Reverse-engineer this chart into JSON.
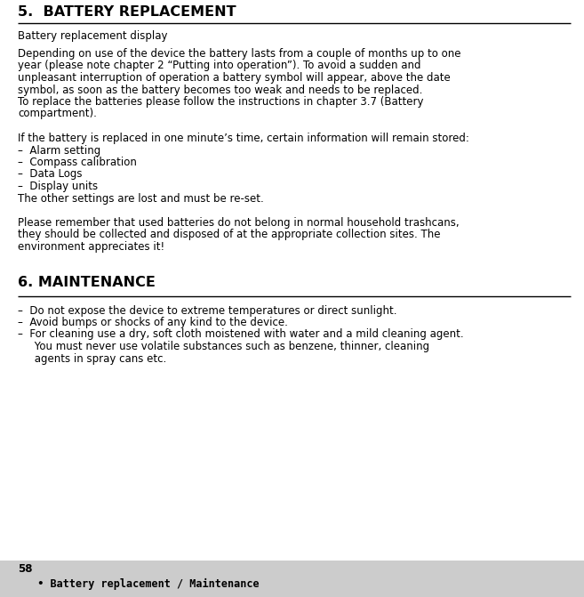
{
  "page_bg": "#ffffff",
  "footer_bg": "#cccccc",
  "title1": "5.  BATTERY REPLACEMENT",
  "title2": "6. MAINTENANCE",
  "subtitle1": "Battery replacement display",
  "body1_lines": [
    "Depending on use of the device the battery lasts from a couple of months up to one",
    "year (please note chapter 2 “Putting into operation”). To avoid a sudden and",
    "unpleasant interruption of operation a battery symbol will appear, above the date",
    "symbol, as soon as the battery becomes too weak and needs to be replaced.",
    "To replace the batteries please follow the instructions in chapter 3.7 (Battery",
    "compartment)."
  ],
  "body2_lines": [
    "If the battery is replaced in one minute’s time, certain information will remain stored:",
    "–  Alarm setting",
    "–  Compass calibration",
    "–  Data Logs",
    "–  Display units",
    "The other settings are lost and must be re-set."
  ],
  "body3_lines": [
    "Please remember that used batteries do not belong in normal household trashcans,",
    "they should be collected and disposed of at the appropriate collection sites. The",
    "environment appreciates it!"
  ],
  "maint_lines": [
    "–  Do not expose the device to extreme temperatures or direct sunlight.",
    "–  Avoid bumps or shocks of any kind to the device.",
    "–  For cleaning use a dry, soft cloth moistened with water and a mild cleaning agent.",
    "     You must never use volatile substances such as benzene, thinner, cleaning",
    "     agents in spray cans etc."
  ],
  "footer_num": "58",
  "footer_text": "  • Battery replacement / Maintenance"
}
